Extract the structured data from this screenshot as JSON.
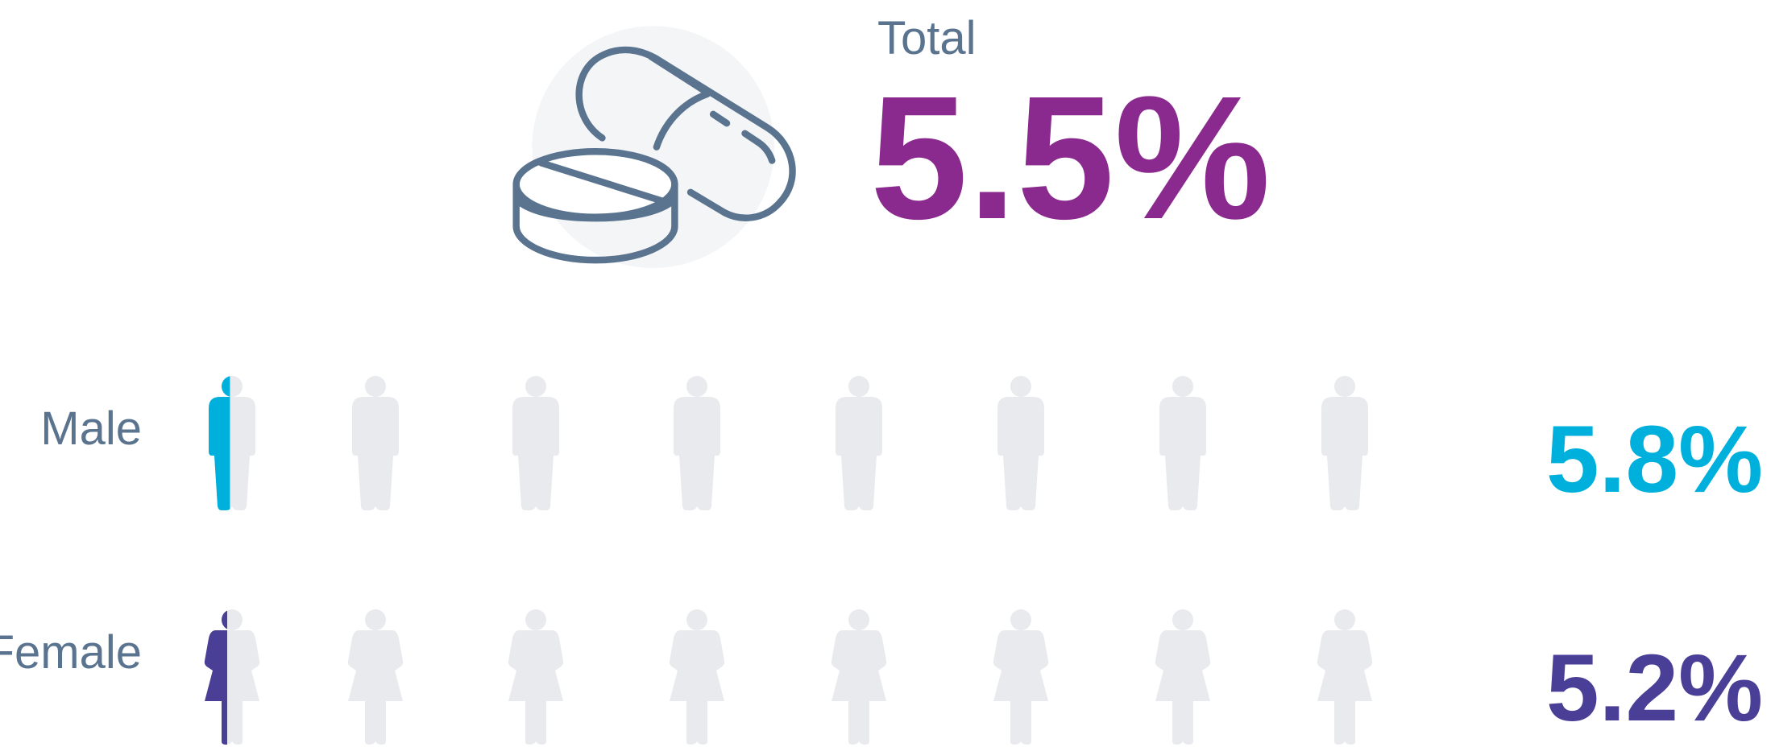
{
  "chart_data": {
    "type": "pictogram",
    "title": "Total",
    "total_value": 5.5,
    "total_value_label": "5.5%",
    "total_color": "#8b2a8e",
    "xlim": [
      0,
      100
    ],
    "series": [
      {
        "name": "Male",
        "color": "#00b0dc",
        "values": [
          5.8
        ],
        "value_labels": [
          "5.8%"
        ]
      },
      {
        "name": "Female",
        "color": "#4a3f96",
        "values": [
          5.2
        ],
        "value_labels": [
          "5.2%"
        ]
      }
    ]
  }
}
